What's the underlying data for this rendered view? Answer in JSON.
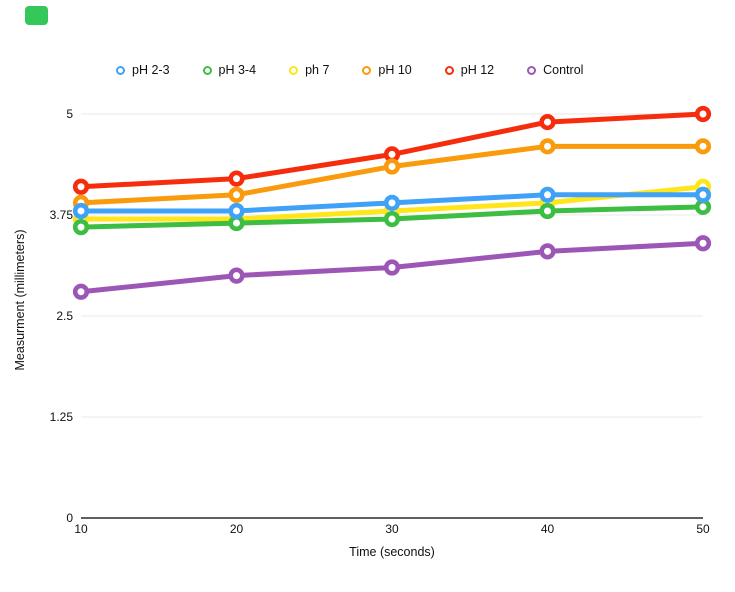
{
  "page": {
    "background": "#ffffff",
    "top_left_badge_color": "#34C759"
  },
  "colors": {
    "gridline": "#E8E8E8",
    "axis": "#000000",
    "text": "#111111"
  },
  "chart_data": {
    "type": "line",
    "title": "",
    "xlabel": "Time (seconds)",
    "ylabel": "Measurment (millimeters)",
    "x": [
      10,
      20,
      30,
      40,
      50
    ],
    "x_tick_labels": [
      "10",
      "20",
      "30",
      "40",
      "50"
    ],
    "y_ticks": [
      0,
      1.25,
      2.5,
      3.75,
      5
    ],
    "y_tick_labels": [
      "0",
      "1.25",
      "2.5",
      "3.75",
      "5"
    ],
    "xlim": [
      10,
      50
    ],
    "ylim": [
      0,
      5
    ],
    "grid": "horizontal-only",
    "legend_position": "top",
    "marker_style": "open-circle",
    "series": [
      {
        "name": "pH 2-3",
        "color": "#3FA2F7",
        "values": [
          3.8,
          3.8,
          3.9,
          4.0,
          4.0
        ]
      },
      {
        "name": "pH 3-4",
        "color": "#3DBD41",
        "values": [
          3.6,
          3.65,
          3.7,
          3.8,
          3.85
        ]
      },
      {
        "name": "ph 7",
        "color": "#FFE51A",
        "values": [
          3.7,
          3.7,
          3.8,
          3.9,
          4.1
        ]
      },
      {
        "name": "pH 10",
        "color": "#F99B0C",
        "values": [
          3.9,
          4.0,
          4.35,
          4.6,
          4.6
        ]
      },
      {
        "name": "pH 12",
        "color": "#F62D0D",
        "values": [
          4.1,
          4.2,
          4.5,
          4.9,
          5.0
        ]
      },
      {
        "name": "Control",
        "color": "#9C57B6",
        "values": [
          2.8,
          3.0,
          3.1,
          3.3,
          3.4
        ]
      }
    ],
    "draw_order": [
      "Control",
      "pH 12",
      "pH 10",
      "ph 7",
      "pH 3-4",
      "pH 2-3"
    ]
  }
}
